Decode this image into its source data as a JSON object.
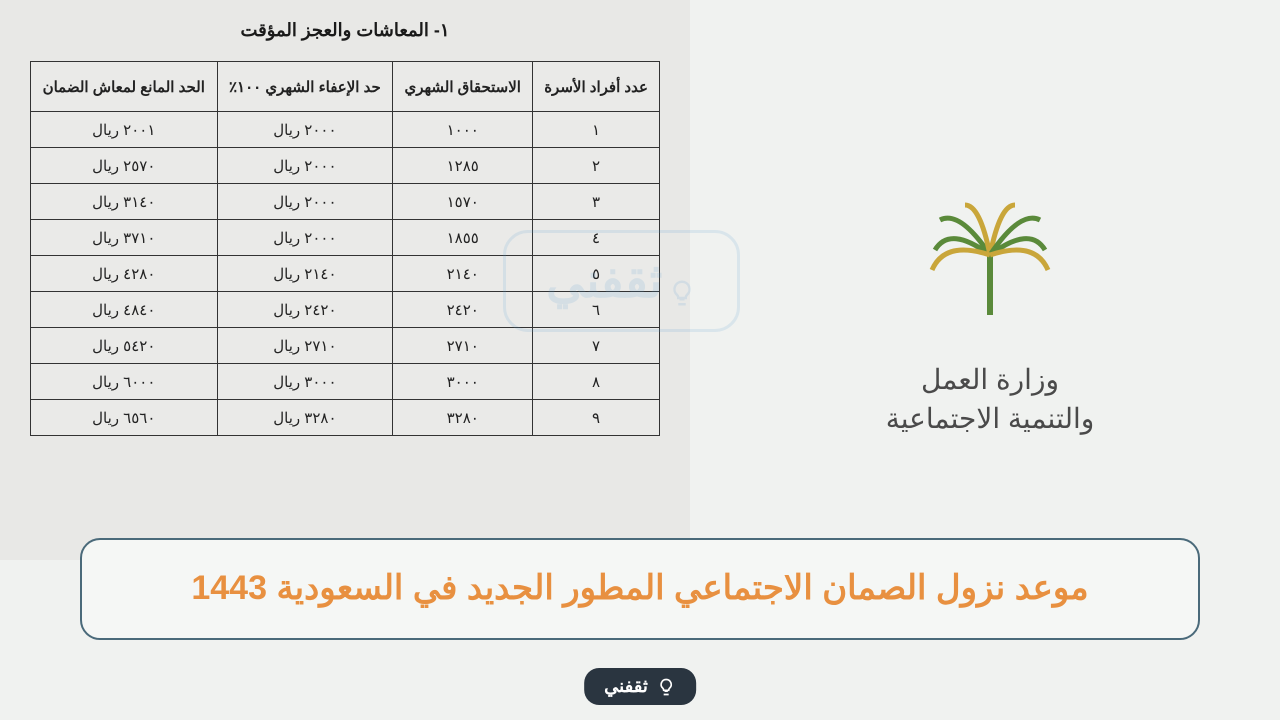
{
  "document": {
    "section_title": "١- المعاشات والعجز المؤقت",
    "table": {
      "headers": {
        "family_members": "عدد أفراد الأسرة",
        "monthly_entitlement": "الاستحقاق الشهري",
        "exemption_limit": "حد الإعفاء الشهري ١٠٠٪",
        "blocking_limit": "الحد المانع لمعاش الضمان"
      },
      "rows": [
        {
          "n": "١",
          "monthly": "١٠٠٠",
          "exempt": "٢٠٠٠ ريال",
          "block": "٢٠٠١ ريال"
        },
        {
          "n": "٢",
          "monthly": "١٢٨٥",
          "exempt": "٢٠٠٠ ريال",
          "block": "٢٥٧٠ ريال"
        },
        {
          "n": "٣",
          "monthly": "١٥٧٠",
          "exempt": "٢٠٠٠ ريال",
          "block": "٣١٤٠ ريال"
        },
        {
          "n": "٤",
          "monthly": "١٨٥٥",
          "exempt": "٢٠٠٠ ريال",
          "block": "٣٧١٠ ريال"
        },
        {
          "n": "٥",
          "monthly": "٢١٤٠",
          "exempt": "٢١٤٠ ريال",
          "block": "٤٢٨٠ ريال"
        },
        {
          "n": "٦",
          "monthly": "٢٤٢٠",
          "exempt": "٢٤٢٠ ريال",
          "block": "٤٨٤٠ ريال"
        },
        {
          "n": "٧",
          "monthly": "٢٧١٠",
          "exempt": "٢٧١٠ ريال",
          "block": "٥٤٢٠ ريال"
        },
        {
          "n": "٨",
          "monthly": "٣٠٠٠",
          "exempt": "٣٠٠٠ ريال",
          "block": "٦٠٠٠ ريال"
        },
        {
          "n": "٩",
          "monthly": "٣٢٨٠",
          "exempt": "٣٢٨٠ ريال",
          "block": "٦٥٦٠ ريال"
        }
      ]
    }
  },
  "ministry": {
    "line1": "وزارة العمل",
    "line2": "والتنمية الاجتماعية",
    "logo_colors": {
      "green": "#5a8a3a",
      "gold": "#c9a63a"
    }
  },
  "watermark": {
    "text": "ثقفني"
  },
  "banner": {
    "title": "موعد نزول الصمان الاجتماعي المطور الجديد في السعودية 1443",
    "text_color": "#e89040",
    "bg_color": "#f5f7f5",
    "border_color": "#4a6a7a"
  },
  "footer": {
    "brand": "ثقفني",
    "bg_color": "#2a3540"
  }
}
